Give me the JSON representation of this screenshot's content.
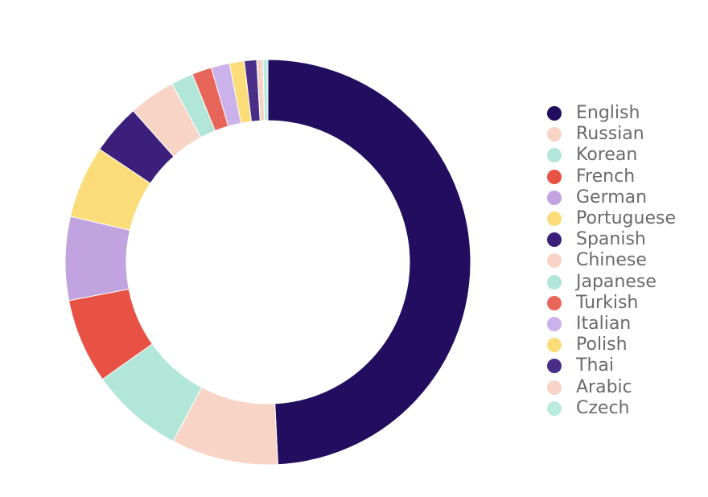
{
  "chart_data": {
    "type": "pie",
    "variant": "donut",
    "title": "",
    "legend_position": "right",
    "series": [
      {
        "name": "English",
        "value": 50.2,
        "color": "#220d5f"
      },
      {
        "name": "Russian",
        "value": 8.7,
        "color": "#f7d4c6"
      },
      {
        "name": "Korean",
        "value": 7.6,
        "color": "#b1e6d8"
      },
      {
        "name": "French",
        "value": 6.9,
        "color": "#e75244"
      },
      {
        "name": "German",
        "value": 6.8,
        "color": "#c1a3e0"
      },
      {
        "name": "Portuguese",
        "value": 5.9,
        "color": "#fadc78"
      },
      {
        "name": "Spanish",
        "value": 4.1,
        "color": "#3c1f7b"
      },
      {
        "name": "Chinese",
        "value": 3.8,
        "color": "#f7d4c6"
      },
      {
        "name": "Japanese",
        "value": 1.8,
        "color": "#b1e6d8"
      },
      {
        "name": "Turkish",
        "value": 1.6,
        "color": "#e86659"
      },
      {
        "name": "Italian",
        "value": 1.5,
        "color": "#cbb2ea"
      },
      {
        "name": "Polish",
        "value": 1.2,
        "color": "#fadc78"
      },
      {
        "name": "Thai",
        "value": 1.0,
        "color": "#4a2f88"
      },
      {
        "name": "Arabic",
        "value": 0.5,
        "color": "#f7d4c6"
      },
      {
        "name": "Czech",
        "value": 0.4,
        "color": "#b9ebdf"
      }
    ]
  }
}
